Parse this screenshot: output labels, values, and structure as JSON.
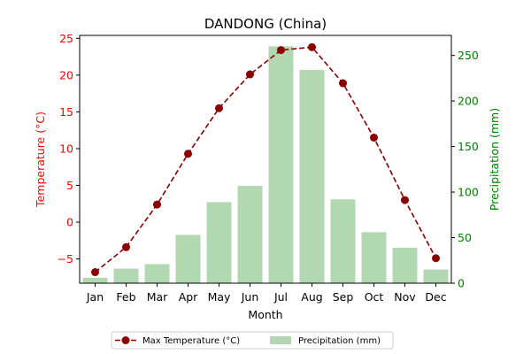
{
  "chart_data": {
    "type": "bar+line",
    "title": "DANDONG (China)",
    "xlabel": "Month",
    "categories": [
      "Jan",
      "Feb",
      "Mar",
      "Apr",
      "May",
      "Jun",
      "Jul",
      "Aug",
      "Sep",
      "Oct",
      "Nov",
      "Dec"
    ],
    "left_axis": {
      "label": "Temperature (°C)",
      "range": [
        -8.3,
        25.4
      ],
      "ticks": [
        -5,
        0,
        5,
        10,
        15,
        20,
        25
      ],
      "tick_labels": [
        "−5",
        "0",
        "5",
        "10",
        "15",
        "20",
        "25"
      ],
      "color": "#ff0000"
    },
    "right_axis": {
      "label": "Precipitation (mm)",
      "range": [
        0,
        272
      ],
      "ticks": [
        0,
        50,
        100,
        150,
        200,
        250
      ],
      "tick_labels": [
        "0",
        "50",
        "100",
        "150",
        "200",
        "250"
      ],
      "color": "#008000"
    },
    "series": [
      {
        "name": "Max Temperature (°C)",
        "kind": "line",
        "axis": "left",
        "color": "#8b0000",
        "values": [
          -6.8,
          -3.4,
          2.4,
          9.3,
          15.5,
          20.1,
          23.4,
          23.8,
          18.9,
          11.5,
          3.0,
          -4.9
        ]
      },
      {
        "name": "Precipitation (mm)",
        "kind": "bar",
        "axis": "right",
        "color": "#b2d8b2",
        "values": [
          6,
          16,
          21,
          53,
          89,
          107,
          260,
          234,
          92,
          56,
          39,
          15
        ]
      }
    ],
    "legend": {
      "placement": "bottom-center"
    },
    "grid": false
  }
}
